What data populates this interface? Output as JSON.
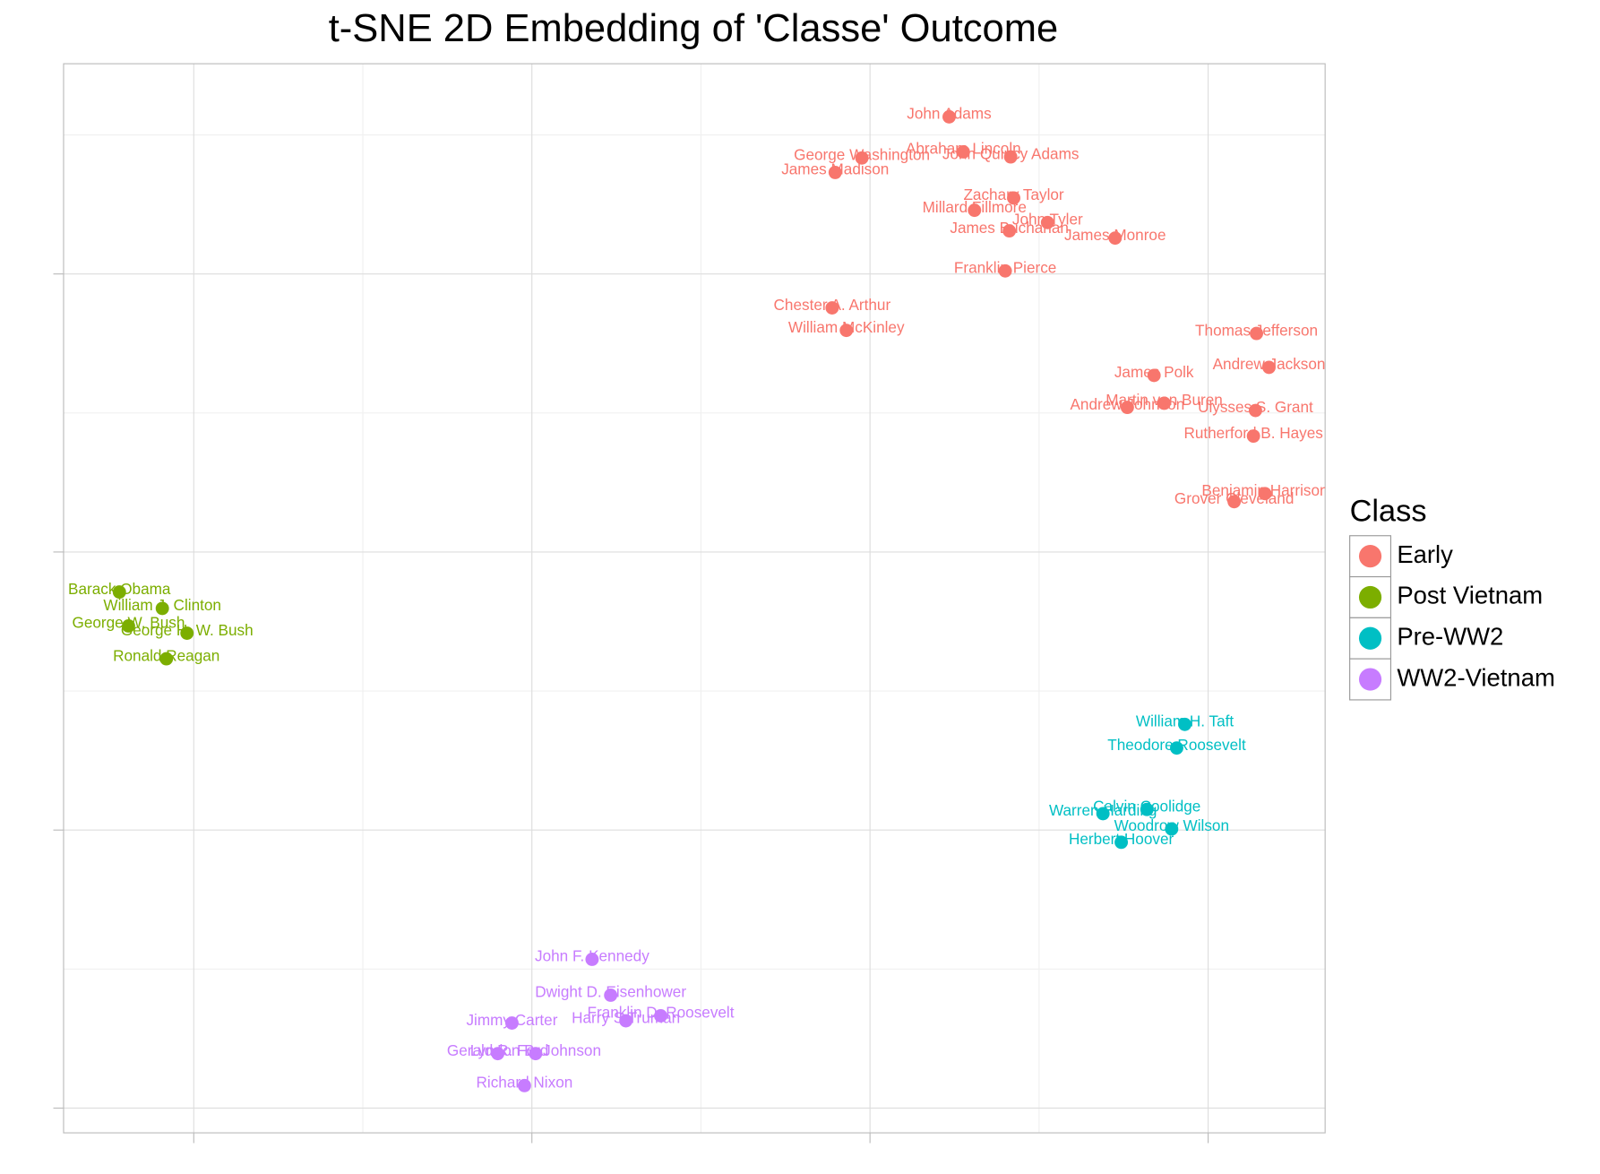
{
  "chart_data": {
    "type": "scatter",
    "title": "t-SNE 2D Embedding of 'Classe' Outcome",
    "xlim": [
      -23.85,
      13.46
    ],
    "ylim": [
      -20.89,
      17.56
    ],
    "xticks": [
      -20,
      -10,
      0,
      10
    ],
    "yticks": [
      -20,
      -10,
      0,
      10
    ],
    "xminor": [
      -15,
      -5,
      5
    ],
    "yminor": [
      -15,
      -5,
      5,
      15
    ],
    "tick_labels": false,
    "grid": true,
    "legend_title": "Class",
    "legend_position": "right",
    "series": [
      {
        "name": "Early",
        "color": "#F8766D",
        "labels": [
          "John Adams",
          "Abraham Lincoln",
          "John Quincy Adams",
          "George Washington",
          "James Madison",
          "Zachary Taylor",
          "Millard Fillmore",
          "John Tyler",
          "James Buchanan",
          "James Monroe",
          "Franklin Pierce",
          "Chester A. Arthur",
          "William McKinley",
          "Thomas Jefferson",
          "Andrew Jackson",
          "James Polk",
          "Martin van Buren",
          "Andrew Johnson",
          "Ulysses S. Grant",
          "Rutherford B. Hayes",
          "Benjamin Harrison",
          "Grover Cleveland"
        ],
        "x": [
          2.34,
          2.76,
          4.16,
          -0.24,
          -1.03,
          4.25,
          3.09,
          5.25,
          4.12,
          7.25,
          4.0,
          -1.12,
          -0.7,
          11.43,
          11.8,
          8.4,
          8.7,
          7.61,
          11.4,
          11.34,
          11.68,
          10.77
        ],
        "y": [
          15.65,
          14.39,
          14.21,
          14.17,
          13.65,
          12.73,
          12.29,
          11.85,
          11.55,
          11.29,
          10.11,
          8.78,
          7.97,
          7.86,
          6.64,
          6.35,
          5.35,
          5.2,
          5.09,
          4.17,
          2.1,
          1.81
        ]
      },
      {
        "name": "Post Vietnam",
        "color": "#7CAE00",
        "labels": [
          "Barack Obama",
          "William J. Clinton",
          "George W. Bush",
          "George H. W. Bush",
          "Ronald Reagan"
        ],
        "x": [
          -22.2,
          -20.93,
          -21.93,
          -20.2,
          -20.81
        ],
        "y": [
          -1.44,
          -2.03,
          -2.66,
          -2.92,
          -3.84
        ]
      },
      {
        "name": "Pre-WW2",
        "color": "#00BFC4",
        "labels": [
          "William H. Taft",
          "Theodore Roosevelt",
          "Calvin Coolidge",
          "Warren Harding",
          "Woodrow Wilson",
          "Herbert Hoover"
        ],
        "x": [
          9.31,
          9.07,
          8.19,
          6.89,
          8.92,
          7.43
        ],
        "y": [
          -6.2,
          -7.05,
          -9.26,
          -9.41,
          -9.96,
          -10.44
        ]
      },
      {
        "name": "WW2-Vietnam",
        "color": "#C77CFF",
        "labels": [
          "John F. Kennedy",
          "Dwight D. Eisenhower",
          "Franklin D. Roosevelt",
          "Harry S Truman",
          "Jimmy Carter",
          "Gerald R. Ford",
          "Lyndon B. Johnson",
          "Richard Nixon"
        ],
        "x": [
          -8.22,
          -7.67,
          -6.19,
          -7.22,
          -10.59,
          -11.01,
          -9.89,
          -10.22
        ],
        "y": [
          -14.65,
          -15.94,
          -16.68,
          -16.86,
          -16.94,
          -18.04,
          -18.04,
          -19.19
        ]
      }
    ]
  }
}
